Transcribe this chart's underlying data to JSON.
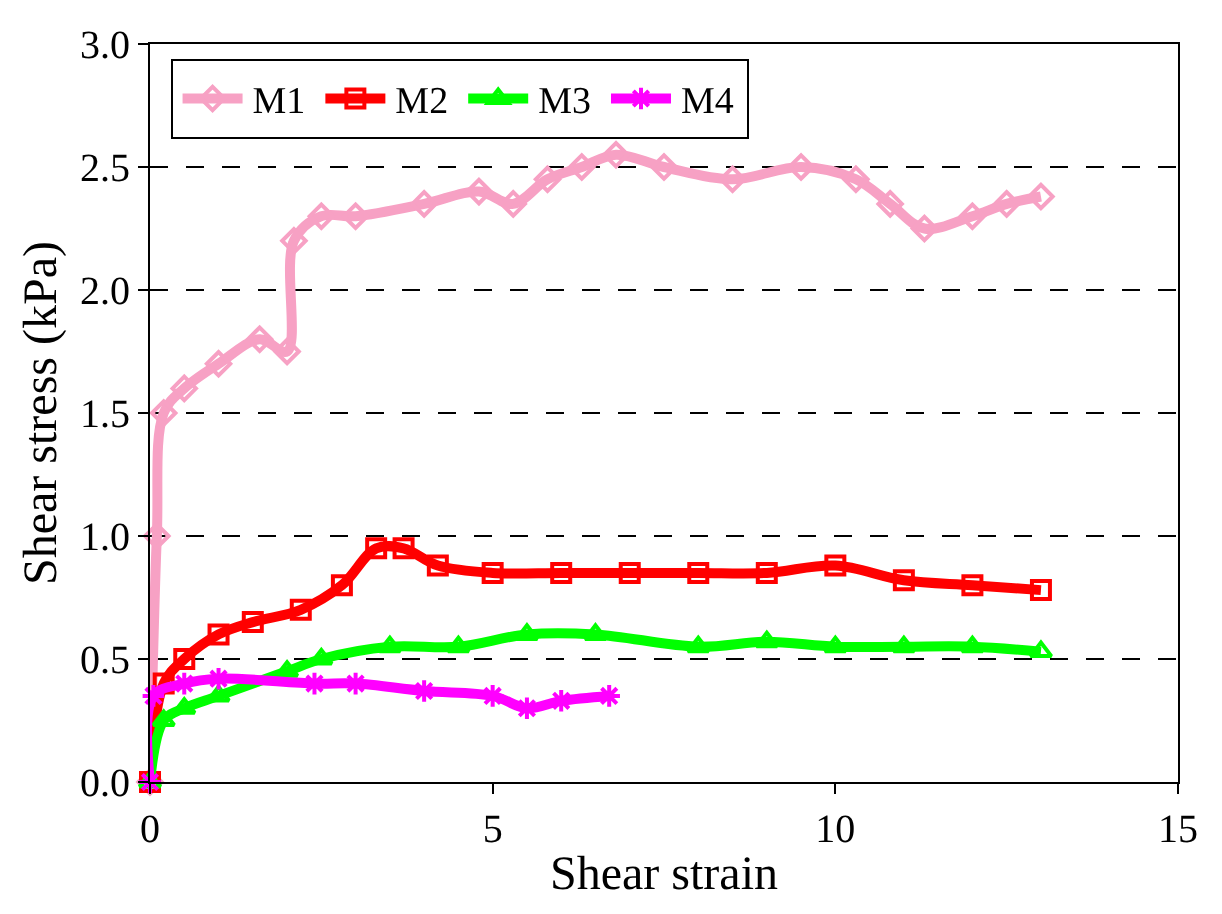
{
  "chart_data": {
    "type": "line",
    "xlabel": "Shear strain",
    "ylabel": "Shear stress (kPa)",
    "xlim": [
      0,
      15
    ],
    "xticks": [
      0,
      5,
      10,
      15
    ],
    "ylim": [
      0,
      3.0
    ],
    "yticks": [
      {
        "value": 0,
        "label": "0.0"
      },
      {
        "value": 0.5,
        "label": "0.5"
      },
      {
        "value": 1,
        "label": "1.0"
      },
      {
        "value": 1.5,
        "label": "1.5"
      },
      {
        "value": 2,
        "label": "2.0"
      },
      {
        "value": 2.5,
        "label": "2.5"
      },
      {
        "value": 3,
        "label": "3.0"
      }
    ],
    "grid": "y",
    "legend": "top left",
    "series": [
      {
        "name": "M1",
        "color": "#f7a1c4",
        "marker": "diamond",
        "x": [
          0,
          0.1,
          0.2,
          0.5,
          1.0,
          1.6,
          2.0,
          2.1,
          2.5,
          3.0,
          4.0,
          4.8,
          5.3,
          5.8,
          6.3,
          6.8,
          7.5,
          8.5,
          9.5,
          10.3,
          10.8,
          11.3,
          12.0,
          12.5,
          13.0
        ],
        "values": [
          0,
          1.0,
          1.5,
          1.6,
          1.7,
          1.8,
          1.75,
          2.2,
          2.3,
          2.3,
          2.35,
          2.4,
          2.35,
          2.45,
          2.5,
          2.55,
          2.5,
          2.45,
          2.5,
          2.45,
          2.35,
          2.25,
          2.3,
          2.35,
          2.38
        ]
      },
      {
        "name": "M2",
        "color": "#ff0000",
        "marker": "square",
        "x": [
          0,
          0.2,
          0.5,
          1.0,
          1.5,
          2.2,
          2.8,
          3.3,
          3.7,
          4.2,
          5.0,
          6.0,
          7.0,
          8.0,
          9.0,
          10.0,
          11.0,
          12.0,
          13.0
        ],
        "values": [
          0,
          0.4,
          0.5,
          0.6,
          0.65,
          0.7,
          0.8,
          0.95,
          0.95,
          0.88,
          0.85,
          0.85,
          0.85,
          0.85,
          0.85,
          0.88,
          0.82,
          0.8,
          0.78
        ]
      },
      {
        "name": "M3",
        "color": "#00ff00",
        "marker": "triangle",
        "x": [
          0,
          0.2,
          0.5,
          1.0,
          2.0,
          2.5,
          3.5,
          4.5,
          5.5,
          6.5,
          8.0,
          9.0,
          10.0,
          11.0,
          12.0,
          13.0
        ],
        "values": [
          0,
          0.25,
          0.3,
          0.35,
          0.45,
          0.5,
          0.55,
          0.55,
          0.6,
          0.6,
          0.55,
          0.57,
          0.55,
          0.55,
          0.55,
          0.53
        ]
      },
      {
        "name": "M4",
        "color": "#ff00ff",
        "marker": "cross",
        "x": [
          0,
          0.05,
          0.5,
          1.0,
          2.4,
          3.0,
          4.0,
          5.0,
          5.5,
          6.0,
          6.7
        ],
        "values": [
          0,
          0.35,
          0.4,
          0.42,
          0.4,
          0.4,
          0.37,
          0.35,
          0.3,
          0.33,
          0.35
        ]
      }
    ]
  }
}
